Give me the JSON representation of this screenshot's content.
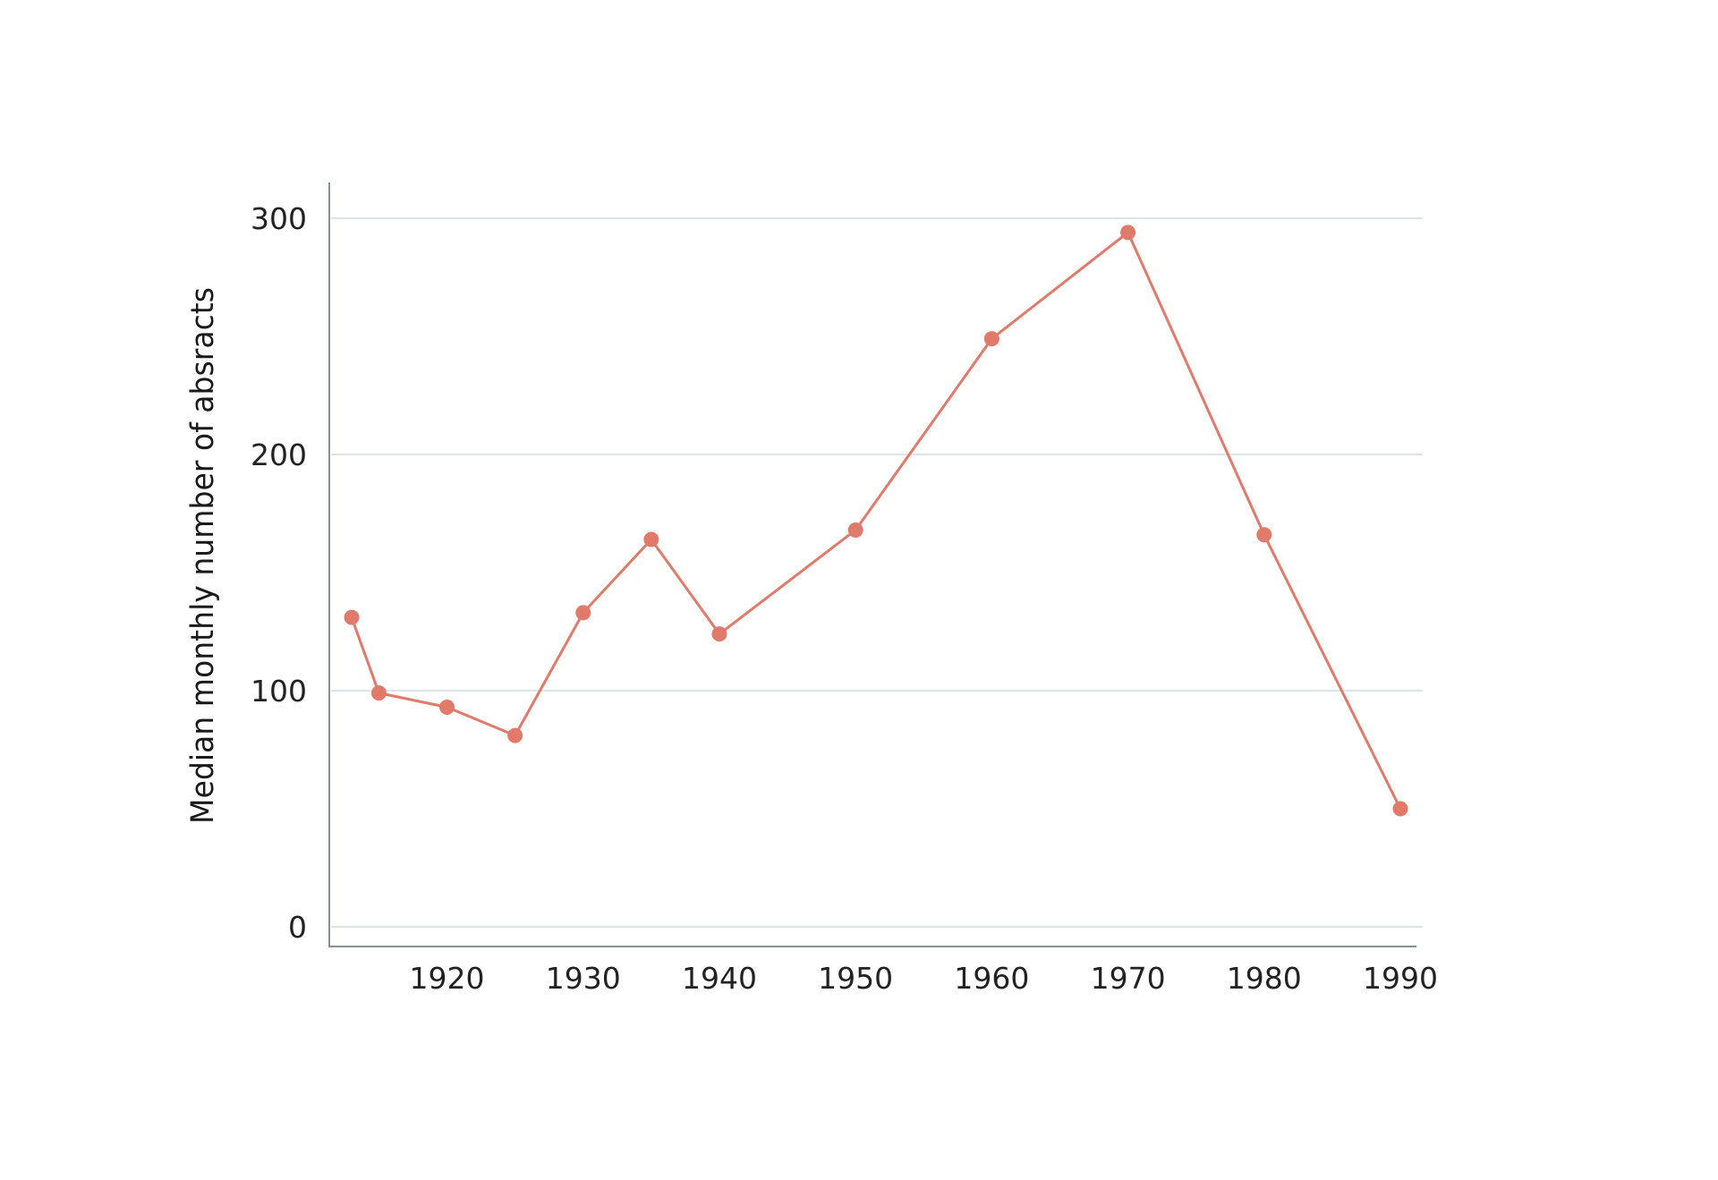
{
  "chart_data": {
    "type": "line",
    "title": "",
    "xlabel": "",
    "ylabel": "Median monthly number of absracts",
    "x": [
      1913,
      1915,
      1920,
      1925,
      1930,
      1935,
      1940,
      1950,
      1960,
      1970,
      1980,
      1990
    ],
    "series": [
      {
        "values": [
          131,
          99,
          93,
          81,
          133,
          164,
          124,
          168,
          249,
          294,
          166,
          50
        ]
      }
    ],
    "x_ticks": [
      1920,
      1930,
      1940,
      1950,
      1960,
      1970,
      1980,
      1990
    ],
    "y_ticks": [
      0,
      100,
      200,
      300
    ],
    "xlim": [
      1911,
      1991
    ],
    "ylim": [
      -8,
      316
    ],
    "grid": "horizontal",
    "legend": "none",
    "colors": {
      "series": "#e07a6a",
      "grid": "#d3dce6",
      "axis": "#8a8f96",
      "text": "#222222"
    }
  }
}
